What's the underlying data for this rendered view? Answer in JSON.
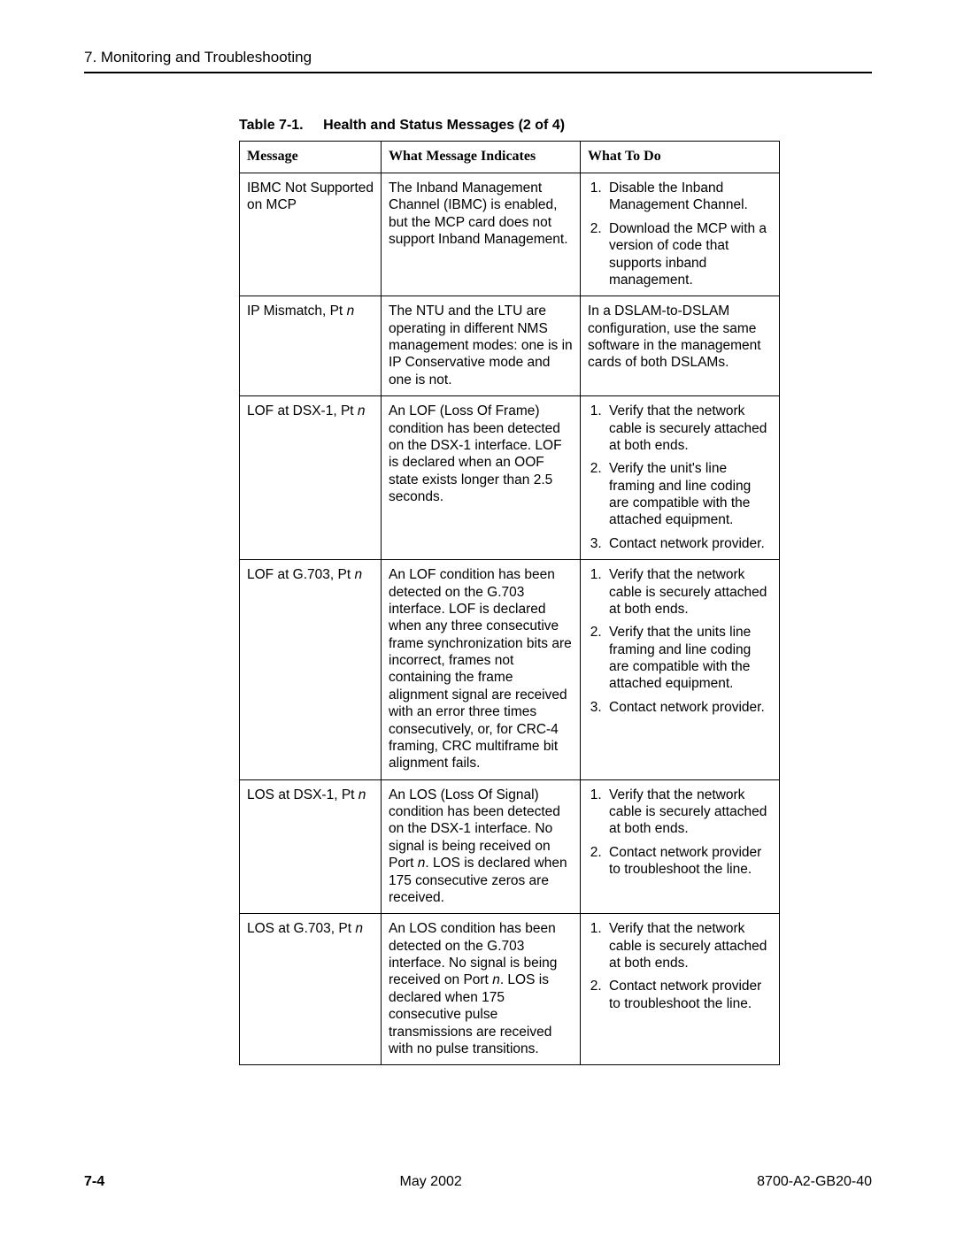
{
  "header": {
    "chapter": "7. Monitoring and Troubleshooting"
  },
  "table": {
    "number": "Table 7-1.",
    "title": "Health and Status Messages  (2 of 4)",
    "type": "table",
    "columns": {
      "c1": "Message",
      "c2": "What Message Indicates",
      "c3": "What To Do"
    },
    "rows": {
      "r0": {
        "msg": "IBMC Not Supported on MCP",
        "ind": "The Inband Management Channel (IBMC) is enabled, but the MCP card does not support Inband Management.",
        "todo": {
          "t1": "Disable the Inband Management Channel.",
          "t2": "Download the MCP with a version of code that supports inband management."
        }
      },
      "r1": {
        "msg_pre": "IP Mismatch, Pt ",
        "msg_it": "n",
        "ind": "The NTU and the LTU are operating in different NMS management modes: one is in IP Conservative mode and one is not.",
        "todo_text": "In a DSLAM-to-DSLAM configuration, use the same software in the management cards of both DSLAMs."
      },
      "r2": {
        "msg_pre": "LOF at DSX-1, Pt ",
        "msg_it": "n",
        "ind": "An LOF (Loss Of Frame) condition has been detected on the DSX-1 interface. LOF is declared when an OOF state exists longer than 2.5 seconds.",
        "todo": {
          "t1": "Verify that the network cable is securely attached at both ends.",
          "t2": "Verify the unit's line framing and line coding are compatible with the attached equipment.",
          "t3": "Contact network provider."
        }
      },
      "r3": {
        "msg_pre": "LOF at G.703, Pt ",
        "msg_it": "n",
        "ind": "An LOF condition has been detected on the G.703 interface. LOF is declared when any three consecutive frame synchronization bits are incorrect, frames not containing the frame alignment signal are received with an error three times consecutively, or, for CRC-4 framing, CRC multiframe bit alignment fails.",
        "todo": {
          "t1": "Verify that the network cable is securely attached at both ends.",
          "t2": "Verify that the units line framing and line coding are compatible with the attached equipment.",
          "t3": "Contact network provider."
        }
      },
      "r4": {
        "msg_pre": "LOS at DSX-1, Pt ",
        "msg_it": "n",
        "ind_pre": "An LOS (Loss Of Signal) condition has been detected on the DSX-1 interface. No signal is being received on Port ",
        "ind_it": "n",
        "ind_post": ". LOS is declared when 175 consecutive zeros are received.",
        "todo": {
          "t1": "Verify that the network cable is securely attached at both ends.",
          "t2": "Contact network provider to troubleshoot the line."
        }
      },
      "r5": {
        "msg_pre": "LOS at G.703, Pt ",
        "msg_it": "n",
        "ind_pre": "An LOS condition has been detected on the G.703 interface. No signal is being received on Port ",
        "ind_it": "n",
        "ind_post": ". LOS is declared when 175 consecutive pulse transmissions are received with no pulse transitions.",
        "todo": {
          "t1": "Verify that the network cable is securely attached at both ends.",
          "t2": "Contact network provider to troubleshoot the line."
        }
      }
    }
  },
  "footer": {
    "page": "7-4",
    "date": "May 2002",
    "docnum": "8700-A2-GB20-40"
  }
}
